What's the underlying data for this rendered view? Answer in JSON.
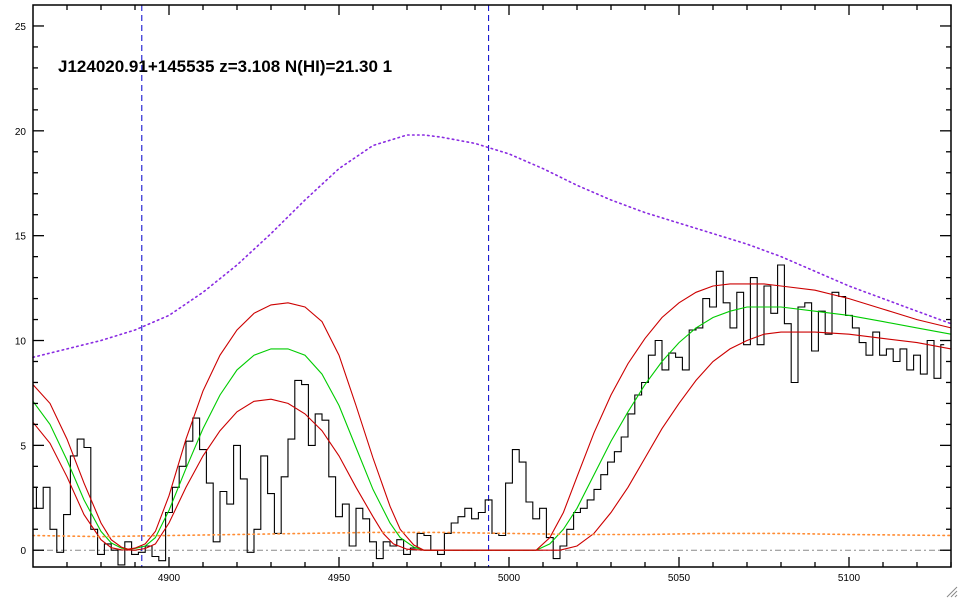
{
  "chart_data": {
    "type": "line",
    "title": "J124020.91+145535 z=3.108 N(HI)=21.30 1",
    "xlabel": "",
    "ylabel": "",
    "xlim": [
      4860,
      5130
    ],
    "ylim": [
      -0.8,
      26
    ],
    "xticks": [
      4900,
      4950,
      5000,
      5050,
      5100
    ],
    "yticks": [
      0,
      5,
      10,
      15,
      20,
      25
    ],
    "grid": false,
    "vlines": [
      4892,
      4994
    ],
    "zero_line": 0,
    "series": [
      {
        "style": "step",
        "color": "#000000",
        "x": [
          4860,
          4862,
          4864,
          4866,
          4868,
          4870,
          4872,
          4874,
          4876,
          4878,
          4880,
          4882,
          4884,
          4886,
          4888,
          4890,
          4892,
          4894,
          4896,
          4898,
          4900,
          4902,
          4904,
          4906,
          4908,
          4910,
          4912,
          4914,
          4916,
          4918,
          4920,
          4922,
          4924,
          4926,
          4928,
          4930,
          4932,
          4934,
          4936,
          4938,
          4940,
          4942,
          4944,
          4946,
          4948,
          4950,
          4952,
          4954,
          4956,
          4958,
          4960,
          4962,
          4964,
          4966,
          4968,
          4970,
          4972,
          4974,
          4976,
          4978,
          4980,
          4982,
          4984,
          4986,
          4988,
          4990,
          4992,
          4994,
          4996,
          4998,
          5000,
          5002,
          5004,
          5006,
          5008,
          5010,
          5012,
          5014,
          5016,
          5018,
          5020,
          5022,
          5024,
          5026,
          5028,
          5030,
          5032,
          5034,
          5036,
          5038,
          5040,
          5042,
          5044,
          5046,
          5048,
          5050,
          5052,
          5054,
          5056,
          5058,
          5060,
          5062,
          5064,
          5066,
          5068,
          5070,
          5072,
          5074,
          5076,
          5078,
          5080,
          5082,
          5084,
          5086,
          5088,
          5090,
          5092,
          5094,
          5096,
          5098,
          5100,
          5102,
          5104,
          5106,
          5108,
          5110,
          5112,
          5114,
          5116,
          5118,
          5120,
          5122,
          5124,
          5126,
          5128
        ],
        "y": [
          3.0,
          2.0,
          3.0,
          1.0,
          -0.1,
          1.7,
          4.5,
          5.3,
          4.9,
          1.0,
          -0.2,
          0.3,
          0.0,
          -0.7,
          0.4,
          -0.2,
          -0.1,
          0.2,
          -0.3,
          -0.5,
          1.8,
          3.0,
          4.0,
          5.2,
          6.3,
          4.8,
          3.2,
          0.4,
          2.8,
          2.2,
          5.0,
          3.4,
          -0.1,
          1.0,
          4.5,
          2.7,
          0.8,
          3.5,
          5.3,
          8.1,
          7.9,
          5.0,
          6.5,
          6.2,
          3.5,
          1.6,
          2.2,
          0.2,
          2.0,
          1.5,
          0.4,
          -0.4,
          0.4,
          0.2,
          0.5,
          -0.2,
          0.1,
          0.8,
          0.7,
          0.0,
          -0.2,
          0.8,
          1.3,
          1.6,
          2.0,
          1.5,
          1.8,
          2.4,
          0.8,
          0.7,
          3.2,
          4.8,
          4.2,
          2.3,
          1.5,
          2.0,
          0.6,
          -0.4,
          0.2,
          1.0,
          1.8,
          2.0,
          2.4,
          2.9,
          3.6,
          4.2,
          4.7,
          5.4,
          6.5,
          7.4,
          8.0,
          9.3,
          10.0,
          8.6,
          9.4,
          9.2,
          8.6,
          10.5,
          10.6,
          12.0,
          11.6,
          13.3,
          11.8,
          10.6,
          12.3,
          9.8,
          13.0,
          9.8,
          12.6,
          11.3,
          13.6,
          10.8,
          8.0,
          11.6,
          11.8,
          9.5,
          11.4,
          10.3,
          12.3,
          12.1,
          11.2,
          10.6,
          9.9,
          9.3,
          10.4,
          9.3,
          9.6,
          9.0,
          9.6,
          8.6,
          9.3,
          8.4,
          10.0,
          8.2,
          9.8
        ]
      },
      {
        "style": "solid",
        "color": "#00cc00",
        "x": [
          4860,
          4865,
          4870,
          4875,
          4880,
          4883,
          4886,
          4888,
          4890,
          4893,
          4896,
          4900,
          4905,
          4910,
          4915,
          4920,
          4925,
          4930,
          4935,
          4940,
          4945,
          4950,
          4955,
          4960,
          4965,
          4968,
          4972,
          4975,
          4980,
          4990,
          5000,
          5005,
          5008,
          5012,
          5016,
          5020,
          5025,
          5030,
          5035,
          5040,
          5045,
          5050,
          5055,
          5060,
          5065,
          5070,
          5075,
          5080,
          5090,
          5100,
          5110,
          5120,
          5130
        ],
        "y": [
          7.1,
          6.0,
          4.3,
          2.4,
          0.9,
          0.35,
          0.1,
          0.05,
          0.08,
          0.2,
          0.6,
          1.9,
          3.9,
          5.8,
          7.4,
          8.6,
          9.3,
          9.6,
          9.6,
          9.3,
          8.4,
          6.9,
          4.9,
          2.9,
          1.3,
          0.6,
          0.15,
          0.0,
          0.0,
          0.0,
          0.0,
          0.0,
          0.0,
          0.3,
          1.0,
          2.0,
          3.6,
          5.2,
          6.6,
          7.9,
          9.0,
          9.9,
          10.6,
          11.1,
          11.4,
          11.6,
          11.6,
          11.6,
          11.4,
          11.2,
          10.9,
          10.6,
          10.3
        ]
      },
      {
        "style": "solid",
        "color": "#cc0000",
        "x": [
          4860,
          4865,
          4870,
          4875,
          4880,
          4883,
          4886,
          4888,
          4890,
          4893,
          4896,
          4900,
          4905,
          4910,
          4915,
          4920,
          4925,
          4930,
          4935,
          4940,
          4945,
          4950,
          4955,
          4960,
          4965,
          4968,
          4972,
          4975,
          4980,
          4990,
          5000,
          5005,
          5008,
          5012,
          5016,
          5020,
          5025,
          5030,
          5035,
          5040,
          5045,
          5050,
          5055,
          5060,
          5065,
          5070,
          5075,
          5080,
          5090,
          5100,
          5110,
          5120,
          5130
        ],
        "y": [
          7.9,
          7.0,
          5.3,
          3.2,
          1.3,
          0.5,
          0.15,
          0.05,
          0.1,
          0.3,
          0.9,
          2.6,
          5.3,
          7.6,
          9.3,
          10.5,
          11.3,
          11.7,
          11.8,
          11.6,
          10.9,
          9.3,
          6.9,
          4.4,
          2.1,
          1.0,
          0.25,
          0.0,
          0.0,
          0.0,
          0.0,
          0.0,
          0.0,
          0.6,
          1.8,
          3.5,
          5.6,
          7.4,
          8.9,
          10.1,
          11.1,
          11.8,
          12.3,
          12.6,
          12.7,
          12.7,
          12.7,
          12.6,
          12.4,
          12.0,
          11.5,
          11.0,
          10.6
        ]
      },
      {
        "style": "solid",
        "color": "#cc0000",
        "x": [
          4860,
          4865,
          4870,
          4875,
          4880,
          4883,
          4886,
          4890,
          4893,
          4896,
          4900,
          4905,
          4910,
          4915,
          4920,
          4925,
          4930,
          4935,
          4940,
          4945,
          4950,
          4955,
          4960,
          4963,
          4966,
          4970,
          4975,
          4980,
          4990,
          5000,
          5010,
          5015,
          5020,
          5025,
          5030,
          5035,
          5040,
          5045,
          5050,
          5055,
          5060,
          5065,
          5070,
          5075,
          5080,
          5085,
          5090,
          5100,
          5110,
          5120,
          5130
        ],
        "y": [
          6.1,
          5.1,
          3.5,
          1.7,
          0.5,
          0.12,
          0.02,
          0.0,
          0.08,
          0.3,
          1.3,
          3.0,
          4.5,
          5.7,
          6.6,
          7.1,
          7.2,
          7.0,
          6.5,
          5.7,
          4.5,
          3.0,
          1.6,
          0.8,
          0.3,
          0.05,
          0.0,
          0.0,
          0.0,
          0.0,
          0.0,
          0.0,
          0.2,
          0.8,
          1.8,
          3.0,
          4.4,
          5.8,
          7.0,
          8.1,
          9.0,
          9.6,
          10.0,
          10.3,
          10.4,
          10.4,
          10.4,
          10.3,
          10.1,
          9.9,
          9.6
        ]
      },
      {
        "style": "dotted",
        "color": "#8a2be2",
        "x": [
          4860,
          4870,
          4880,
          4890,
          4900,
          4910,
          4920,
          4930,
          4940,
          4950,
          4960,
          4970,
          4975,
          4980,
          4990,
          5000,
          5010,
          5020,
          5030,
          5040,
          5050,
          5060,
          5070,
          5080,
          5090,
          5100,
          5110,
          5120,
          5130
        ],
        "y": [
          9.2,
          9.6,
          10.0,
          10.5,
          11.2,
          12.3,
          13.6,
          15.1,
          16.7,
          18.2,
          19.3,
          19.8,
          19.8,
          19.7,
          19.4,
          18.9,
          18.2,
          17.4,
          16.7,
          16.1,
          15.6,
          15.1,
          14.6,
          14.0,
          13.3,
          12.6,
          12.0,
          11.4,
          10.8
        ]
      },
      {
        "style": "dotted",
        "color": "#ff8c33",
        "x": [
          4860,
          4880,
          4900,
          4920,
          4940,
          4960,
          4980,
          5000,
          5020,
          5040,
          5060,
          5080,
          5100,
          5130
        ],
        "y": [
          0.7,
          0.65,
          0.7,
          0.75,
          0.8,
          0.85,
          0.85,
          0.8,
          0.75,
          0.75,
          0.8,
          0.8,
          0.75,
          0.7
        ]
      }
    ]
  }
}
